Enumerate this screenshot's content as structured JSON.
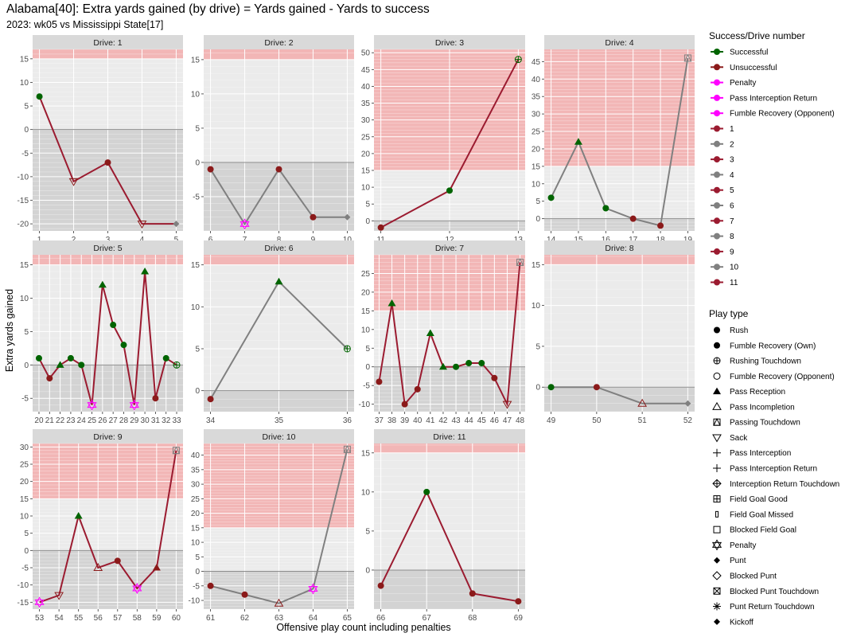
{
  "title": "Alabama[40]: Extra yards gained (by drive) = Yards gained - Yards to success",
  "subtitle": "2023: wk05 vs Mississippi State[17]",
  "colors": {
    "successful": "#006400",
    "unsuccessful": "#8B1A1A",
    "penalty": "#FF00FF",
    "drive_odd": "#9B1B30",
    "drive_even": "#808080",
    "success_zone": "#F2B6B6",
    "negative_zone": "#D3D3D3",
    "panel_bg": "#EBEBEB",
    "strip_bg": "#D9D9D9"
  },
  "chart_data": {
    "type": "line",
    "facet_by": "Drive",
    "xlabel": "Offensive play count including penalties",
    "ylabel": "Extra yards gained",
    "legend_position": "right",
    "legends": [
      {
        "title": "Success/Drive number",
        "entries": [
          {
            "label": "Successful",
            "color": "#006400"
          },
          {
            "label": "Unsuccessful",
            "color": "#8B1A1A"
          },
          {
            "label": "Penalty",
            "color": "#FF00FF"
          },
          {
            "label": "Pass Interception Return",
            "color": "#FF00FF"
          },
          {
            "label": "Fumble Recovery (Opponent)",
            "color": "#FF00FF"
          },
          {
            "label": "1",
            "color": "#9B1B30"
          },
          {
            "label": "2",
            "color": "#808080"
          },
          {
            "label": "3",
            "color": "#9B1B30"
          },
          {
            "label": "4",
            "color": "#808080"
          },
          {
            "label": "5",
            "color": "#9B1B30"
          },
          {
            "label": "6",
            "color": "#808080"
          },
          {
            "label": "7",
            "color": "#9B1B30"
          },
          {
            "label": "8",
            "color": "#808080"
          },
          {
            "label": "9",
            "color": "#9B1B30"
          },
          {
            "label": "10",
            "color": "#808080"
          },
          {
            "label": "11",
            "color": "#9B1B30"
          }
        ]
      },
      {
        "title": "Play type",
        "entries": [
          {
            "label": "Rush",
            "shape": "circle-filled"
          },
          {
            "label": "Fumble Recovery (Own)",
            "shape": "circle-filled"
          },
          {
            "label": "Rushing Touchdown",
            "shape": "circle-plus"
          },
          {
            "label": "Fumble Recovery (Opponent)",
            "shape": "circle-open"
          },
          {
            "label": "Pass Reception",
            "shape": "triangle-filled"
          },
          {
            "label": "Pass Incompletion",
            "shape": "triangle-open"
          },
          {
            "label": "Passing Touchdown",
            "shape": "square-triangle"
          },
          {
            "label": "Sack",
            "shape": "triangle-down-open"
          },
          {
            "label": "Pass Interception",
            "shape": "plus"
          },
          {
            "label": "Pass Interception Return",
            "shape": "plus"
          },
          {
            "label": "Interception Return Touchdown",
            "shape": "diamond-plus"
          },
          {
            "label": "Field Goal Good",
            "shape": "square-plus"
          },
          {
            "label": "Field Goal Missed",
            "shape": "small-rect"
          },
          {
            "label": "Blocked Field Goal",
            "shape": "square-open"
          },
          {
            "label": "Penalty",
            "shape": "star-of-david"
          },
          {
            "label": "Punt",
            "shape": "diamond-filled"
          },
          {
            "label": "Blocked Punt",
            "shape": "diamond-open"
          },
          {
            "label": "Blocked Punt Touchdown",
            "shape": "square-x"
          },
          {
            "label": "Punt Return Touchdown",
            "shape": "asterisk"
          },
          {
            "label": "Kickoff",
            "shape": "diamond-filled"
          }
        ]
      }
    ],
    "panels": [
      {
        "strip": "Drive: 1",
        "drive": 1,
        "xlim": [
          0.8,
          5.2
        ],
        "xticks": [
          1,
          2,
          3,
          4,
          5
        ],
        "ylim": [
          -21.5,
          17
        ],
        "yticks": [
          -20,
          -15,
          -10,
          -5,
          0,
          5,
          10,
          15
        ],
        "success_threshold": 15,
        "line_color": "#9B1B30",
        "points": [
          {
            "x": 1,
            "y": 7,
            "shape": "circle-filled",
            "color": "#006400"
          },
          {
            "x": 2,
            "y": -11,
            "shape": "triangle-down-open",
            "color": "#8B1A1A"
          },
          {
            "x": 3,
            "y": -7,
            "shape": "circle-filled",
            "color": "#8B1A1A"
          },
          {
            "x": 4,
            "y": -20,
            "shape": "triangle-down-open",
            "color": "#8B1A1A"
          },
          {
            "x": 5,
            "y": -20,
            "shape": "diamond-filled",
            "color": "#808080"
          }
        ]
      },
      {
        "strip": "Drive: 2",
        "drive": 2,
        "xlim": [
          5.8,
          10.2
        ],
        "xticks": [
          6,
          7,
          8,
          9,
          10
        ],
        "ylim": [
          -10,
          16.5
        ],
        "yticks": [
          -5,
          0,
          5,
          10,
          15
        ],
        "success_threshold": 15,
        "line_color": "#808080",
        "points": [
          {
            "x": 6,
            "y": -1,
            "shape": "circle-filled",
            "color": "#8B1A1A"
          },
          {
            "x": 7,
            "y": -9,
            "shape": "star-of-david",
            "color": "#FF00FF"
          },
          {
            "x": 8,
            "y": -1,
            "shape": "circle-filled",
            "color": "#8B1A1A"
          },
          {
            "x": 9,
            "y": -8,
            "shape": "circle-filled",
            "color": "#8B1A1A"
          },
          {
            "x": 10,
            "y": -8,
            "shape": "diamond-filled",
            "color": "#808080"
          }
        ]
      },
      {
        "strip": "Drive: 3",
        "drive": 3,
        "xlim": [
          10.9,
          13.1
        ],
        "xticks": [
          11,
          12,
          13
        ],
        "ylim": [
          -3,
          51
        ],
        "yticks": [
          0,
          5,
          10,
          15,
          20,
          25,
          30,
          35,
          40,
          45,
          50
        ],
        "success_threshold": 15,
        "line_color": "#9B1B30",
        "points": [
          {
            "x": 11,
            "y": -2,
            "shape": "circle-filled",
            "color": "#8B1A1A"
          },
          {
            "x": 12,
            "y": 9,
            "shape": "circle-filled",
            "color": "#006400"
          },
          {
            "x": 13,
            "y": 48,
            "shape": "circle-plus",
            "color": "#006400"
          }
        ]
      },
      {
        "strip": "Drive: 4",
        "drive": 4,
        "xlim": [
          13.75,
          19.25
        ],
        "xticks": [
          14,
          15,
          16,
          17,
          18,
          19
        ],
        "ylim": [
          -3.5,
          48.5
        ],
        "yticks": [
          0,
          5,
          10,
          15,
          20,
          25,
          30,
          35,
          40,
          45
        ],
        "success_threshold": 15,
        "line_color": "#808080",
        "points": [
          {
            "x": 14,
            "y": 6,
            "shape": "circle-filled",
            "color": "#006400"
          },
          {
            "x": 15,
            "y": 22,
            "shape": "triangle-filled",
            "color": "#006400"
          },
          {
            "x": 16,
            "y": 3,
            "shape": "circle-filled",
            "color": "#006400"
          },
          {
            "x": 17,
            "y": 0,
            "shape": "circle-filled",
            "color": "#8B1A1A"
          },
          {
            "x": 18,
            "y": -2,
            "shape": "circle-filled",
            "color": "#8B1A1A"
          },
          {
            "x": 19,
            "y": 46,
            "shape": "square-triangle",
            "color": "#808080"
          }
        ]
      },
      {
        "strip": "Drive: 5",
        "drive": 5,
        "xlim": [
          19.4,
          33.6
        ],
        "xticks": [
          20,
          21,
          22,
          23,
          24,
          25,
          26,
          27,
          28,
          29,
          30,
          31,
          32,
          33
        ],
        "ylim": [
          -7,
          16.5
        ],
        "yticks": [
          -5,
          0,
          5,
          10,
          15
        ],
        "success_threshold": 15,
        "line_color": "#9B1B30",
        "points": [
          {
            "x": 20,
            "y": 1,
            "shape": "circle-filled",
            "color": "#006400"
          },
          {
            "x": 21,
            "y": -2,
            "shape": "circle-filled",
            "color": "#8B1A1A"
          },
          {
            "x": 22,
            "y": 0,
            "shape": "triangle-filled",
            "color": "#006400"
          },
          {
            "x": 23,
            "y": 1,
            "shape": "circle-filled",
            "color": "#006400"
          },
          {
            "x": 24,
            "y": 0,
            "shape": "circle-filled",
            "color": "#006400"
          },
          {
            "x": 25,
            "y": -6,
            "shape": "star-of-david",
            "color": "#FF00FF"
          },
          {
            "x": 26,
            "y": 12,
            "shape": "triangle-filled",
            "color": "#006400"
          },
          {
            "x": 27,
            "y": 6,
            "shape": "circle-filled",
            "color": "#006400"
          },
          {
            "x": 28,
            "y": 3,
            "shape": "circle-filled",
            "color": "#006400"
          },
          {
            "x": 29,
            "y": -6,
            "shape": "star-of-david",
            "color": "#FF00FF"
          },
          {
            "x": 30,
            "y": 14,
            "shape": "triangle-filled",
            "color": "#006400"
          },
          {
            "x": 31,
            "y": -5,
            "shape": "circle-filled",
            "color": "#8B1A1A"
          },
          {
            "x": 32,
            "y": 1,
            "shape": "circle-filled",
            "color": "#006400"
          },
          {
            "x": 33,
            "y": 0,
            "shape": "circle-plus",
            "color": "#006400"
          }
        ]
      },
      {
        "strip": "Drive: 6",
        "drive": 6,
        "xlim": [
          33.9,
          36.1
        ],
        "xticks": [
          34,
          35,
          36
        ],
        "ylim": [
          -2.5,
          16.2
        ],
        "yticks": [
          0,
          5,
          10,
          15
        ],
        "success_threshold": 15,
        "line_color": "#808080",
        "points": [
          {
            "x": 34,
            "y": -1,
            "shape": "circle-filled",
            "color": "#8B1A1A"
          },
          {
            "x": 35,
            "y": 13,
            "shape": "triangle-filled",
            "color": "#006400"
          },
          {
            "x": 36,
            "y": 5,
            "shape": "circle-plus",
            "color": "#006400"
          }
        ]
      },
      {
        "strip": "Drive: 7",
        "drive": 7,
        "xlim": [
          36.6,
          48.4
        ],
        "xticks": [
          37,
          38,
          39,
          40,
          41,
          42,
          43,
          44,
          45,
          46,
          47,
          48
        ],
        "ylim": [
          -12,
          30
        ],
        "yticks": [
          -10,
          -5,
          0,
          5,
          10,
          15,
          20,
          25
        ],
        "success_threshold": 15,
        "line_color": "#9B1B30",
        "points": [
          {
            "x": 37,
            "y": -4,
            "shape": "circle-filled",
            "color": "#8B1A1A"
          },
          {
            "x": 38,
            "y": 17,
            "shape": "triangle-filled",
            "color": "#006400"
          },
          {
            "x": 39,
            "y": -10,
            "shape": "circle-filled",
            "color": "#8B1A1A"
          },
          {
            "x": 40,
            "y": -6,
            "shape": "circle-filled",
            "color": "#8B1A1A"
          },
          {
            "x": 41,
            "y": 9,
            "shape": "triangle-filled",
            "color": "#006400"
          },
          {
            "x": 42,
            "y": 0,
            "shape": "triangle-filled",
            "color": "#006400"
          },
          {
            "x": 43,
            "y": 0,
            "shape": "circle-filled",
            "color": "#006400"
          },
          {
            "x": 44,
            "y": 1,
            "shape": "circle-filled",
            "color": "#006400"
          },
          {
            "x": 45,
            "y": 1,
            "shape": "circle-filled",
            "color": "#006400"
          },
          {
            "x": 46,
            "y": -3,
            "shape": "circle-filled",
            "color": "#8B1A1A"
          },
          {
            "x": 47,
            "y": -10,
            "shape": "triangle-down-open",
            "color": "#8B1A1A"
          },
          {
            "x": 48,
            "y": 28,
            "shape": "square-triangle",
            "color": "#808080"
          }
        ]
      },
      {
        "strip": "Drive: 8",
        "drive": 8,
        "xlim": [
          48.85,
          52.15
        ],
        "xticks": [
          49,
          50,
          51,
          52
        ],
        "ylim": [
          -3,
          16.2
        ],
        "yticks": [
          0,
          5,
          10,
          15
        ],
        "success_threshold": 15,
        "line_color": "#808080",
        "points": [
          {
            "x": 49,
            "y": 0,
            "shape": "circle-filled",
            "color": "#006400"
          },
          {
            "x": 50,
            "y": 0,
            "shape": "circle-filled",
            "color": "#8B1A1A"
          },
          {
            "x": 51,
            "y": -2,
            "shape": "triangle-open",
            "color": "#8B1A1A"
          },
          {
            "x": 52,
            "y": -2,
            "shape": "diamond-filled",
            "color": "#808080"
          }
        ]
      },
      {
        "strip": "Drive: 9",
        "drive": 9,
        "xlim": [
          52.65,
          60.35
        ],
        "xticks": [
          53,
          54,
          55,
          56,
          57,
          58,
          59,
          60
        ],
        "ylim": [
          -17,
          31
        ],
        "yticks": [
          -15,
          -10,
          -5,
          0,
          5,
          10,
          15,
          20,
          25,
          30
        ],
        "success_threshold": 15,
        "line_color": "#9B1B30",
        "points": [
          {
            "x": 53,
            "y": -15,
            "shape": "star-of-david",
            "color": "#FF00FF"
          },
          {
            "x": 54,
            "y": -13,
            "shape": "triangle-down-open",
            "color": "#8B1A1A"
          },
          {
            "x": 55,
            "y": 10,
            "shape": "triangle-filled",
            "color": "#006400"
          },
          {
            "x": 56,
            "y": -5,
            "shape": "triangle-open",
            "color": "#8B1A1A"
          },
          {
            "x": 57,
            "y": -3,
            "shape": "circle-filled",
            "color": "#8B1A1A"
          },
          {
            "x": 58,
            "y": -11,
            "shape": "star-of-david",
            "color": "#FF00FF"
          },
          {
            "x": 59,
            "y": -5,
            "shape": "triangle-filled",
            "color": "#8B1A1A"
          },
          {
            "x": 60,
            "y": 29,
            "shape": "square-triangle",
            "color": "#808080"
          }
        ]
      },
      {
        "strip": "Drive: 10",
        "drive": 10,
        "xlim": [
          60.8,
          65.2
        ],
        "xticks": [
          61,
          62,
          63,
          64,
          65
        ],
        "ylim": [
          -13,
          44
        ],
        "yticks": [
          -10,
          -5,
          0,
          5,
          10,
          15,
          20,
          25,
          30,
          35,
          40
        ],
        "success_threshold": 15,
        "line_color": "#808080",
        "points": [
          {
            "x": 61,
            "y": -5,
            "shape": "circle-filled",
            "color": "#8B1A1A"
          },
          {
            "x": 62,
            "y": -8,
            "shape": "circle-filled",
            "color": "#8B1A1A"
          },
          {
            "x": 63,
            "y": -11,
            "shape": "triangle-open",
            "color": "#8B1A1A"
          },
          {
            "x": 64,
            "y": -6,
            "shape": "star-of-david",
            "color": "#FF00FF"
          },
          {
            "x": 65,
            "y": 42,
            "shape": "square-triangle",
            "color": "#808080"
          }
        ]
      },
      {
        "strip": "Drive: 11",
        "drive": 11,
        "xlim": [
          65.85,
          69.15
        ],
        "xticks": [
          66,
          67,
          68,
          69
        ],
        "ylim": [
          -5,
          16.2
        ],
        "yticks": [
          0,
          5,
          10,
          15
        ],
        "success_threshold": 15,
        "line_color": "#9B1B30",
        "points": [
          {
            "x": 66,
            "y": -2,
            "shape": "circle-filled",
            "color": "#8B1A1A"
          },
          {
            "x": 67,
            "y": 10,
            "shape": "circle-filled",
            "color": "#006400"
          },
          {
            "x": 68,
            "y": -3,
            "shape": "circle-filled",
            "color": "#8B1A1A"
          },
          {
            "x": 69,
            "y": -4,
            "shape": "circle-filled",
            "color": "#8B1A1A"
          }
        ]
      }
    ]
  }
}
